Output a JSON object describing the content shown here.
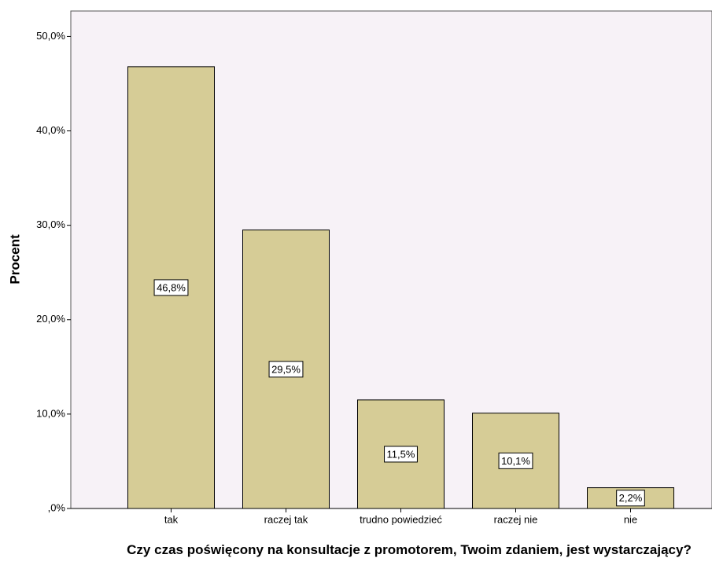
{
  "chart_data": {
    "type": "bar",
    "categories": [
      "tak",
      "raczej tak",
      "trudno powiedzieć",
      "raczej nie",
      "nie"
    ],
    "values": [
      46.8,
      29.5,
      11.5,
      10.1,
      2.2
    ],
    "value_labels": [
      "46,8%",
      "29,5%",
      "11,5%",
      "10,1%",
      "2,2%"
    ],
    "color": "#d6cc96",
    "ylim": [
      0,
      52.7
    ],
    "yticks": [
      {
        "value": 0,
        "label": ",0%"
      },
      {
        "value": 10,
        "label": "10,0%"
      },
      {
        "value": 20,
        "label": "20,0%"
      },
      {
        "value": 30,
        "label": "30,0%"
      },
      {
        "value": 40,
        "label": "40,0%"
      },
      {
        "value": 50,
        "label": "50,0%"
      }
    ],
    "ylabel": "Procent",
    "xlabel": "Czy czas poświęcony na konsultacje z promotorem, Twoim zdaniem, jest wystarczający?"
  }
}
